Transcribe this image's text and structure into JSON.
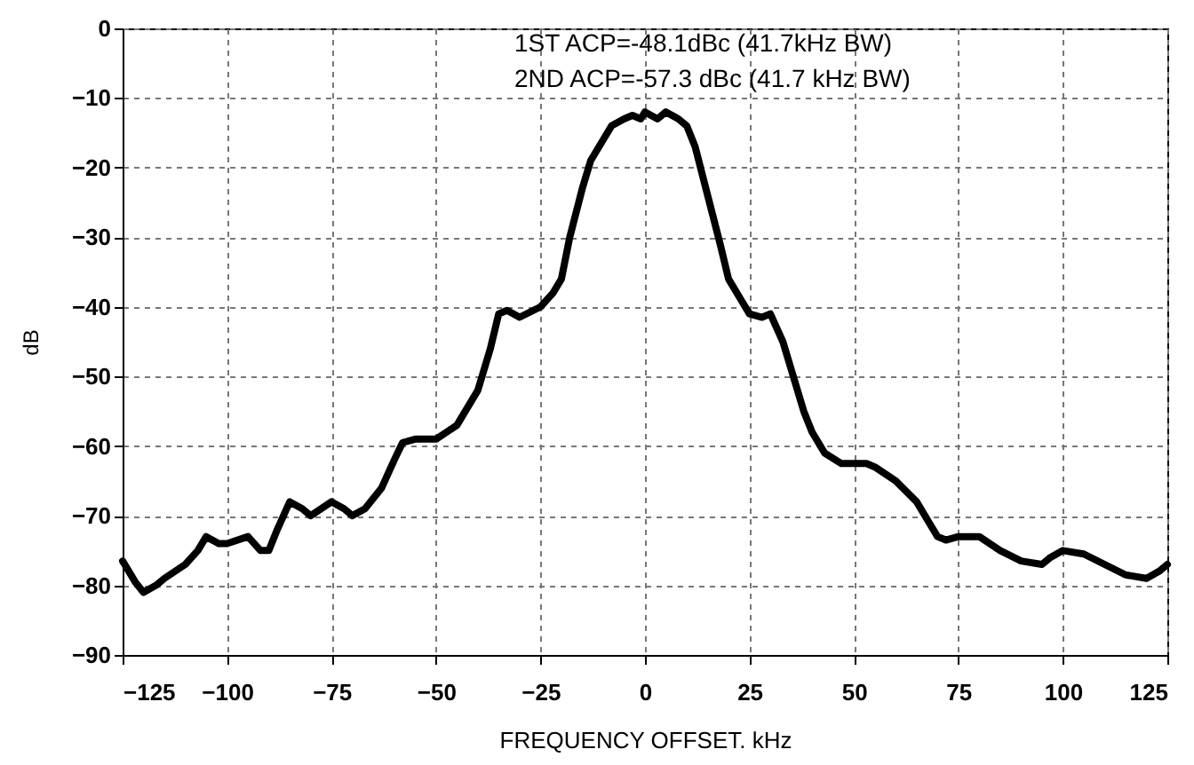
{
  "chart_data": {
    "type": "line",
    "xlabel": "FREQUENCY OFFSET. kHz",
    "ylabel": "dB",
    "annotations": [
      "1ST ACP=-48.1dBc (41.7kHz BW)",
      "2ND ACP=-57.3 dBc (41.7 kHz BW)"
    ],
    "x": [
      -125,
      -122,
      -120,
      -117,
      -115,
      -110,
      -107,
      -105,
      -102,
      -100,
      -95,
      -92,
      -90,
      -88,
      -85,
      -82,
      -80,
      -75,
      -72,
      -70,
      -67,
      -63,
      -60,
      -58,
      -55,
      -50,
      -45,
      -40,
      -37,
      -35,
      -33,
      -30,
      -25,
      -22,
      -20,
      -18,
      -15,
      -13,
      -10,
      -8,
      -5,
      -3,
      -1,
      0,
      3,
      5,
      8,
      10,
      12,
      15,
      18,
      20,
      23,
      25,
      28,
      30,
      33,
      35,
      38,
      40,
      43,
      47,
      50,
      53,
      55,
      60,
      65,
      68,
      70,
      72,
      75,
      80,
      85,
      90,
      95,
      97,
      100,
      105,
      110,
      115,
      120,
      123,
      125
    ],
    "series": [
      {
        "color": "#000000",
        "values": [
          -76.5,
          -79.5,
          -81,
          -80,
          -79,
          -77,
          -75,
          -73,
          -74,
          -74,
          -73,
          -75,
          -75,
          -72,
          -68,
          -69,
          -70,
          -68,
          -69,
          -70,
          -69,
          -66,
          -62,
          -59.5,
          -59,
          -59,
          -57,
          -52,
          -46,
          -41,
          -40.5,
          -41.5,
          -40,
          -38,
          -36,
          -30,
          -23,
          -19,
          -16,
          -14,
          -13,
          -12.5,
          -13,
          -12,
          -13,
          -12,
          -13,
          -14,
          -17,
          -24,
          -31,
          -36,
          -39,
          -41,
          -41.5,
          -41,
          -45,
          -49,
          -55,
          -58,
          -61,
          -62.5,
          -62.5,
          -62.5,
          -63,
          -65,
          -68,
          -71,
          -73,
          -73.5,
          -73,
          -73,
          -75,
          -76.5,
          -77,
          -76,
          -75,
          -75.5,
          -77,
          -78.5,
          -79,
          -78,
          -77
        ]
      }
    ],
    "xlim": [
      -125,
      125
    ],
    "xticks": [
      -125,
      -100,
      -75,
      -50,
      -25,
      0,
      25,
      50,
      75,
      100,
      125
    ],
    "ylim": [
      -90,
      0
    ],
    "yticks": [
      -90,
      -80,
      -70,
      -60,
      -50,
      -40,
      -30,
      -20,
      -10,
      0
    ],
    "grid": true,
    "line_style": "solid"
  }
}
